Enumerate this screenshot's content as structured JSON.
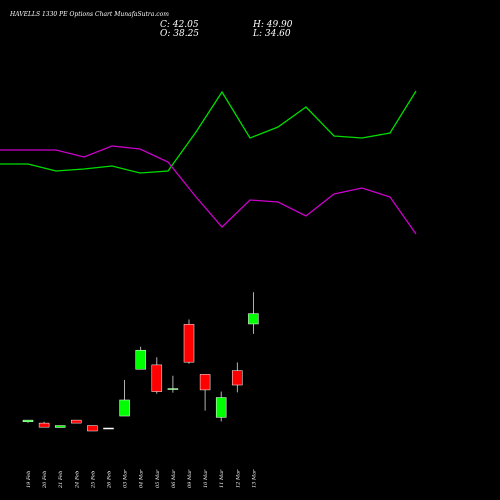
{
  "header": {
    "title": "HAVELLS 1330 PE Options Chart MunafaSutra.com",
    "close_label": "C: 42.05",
    "open_label": "O: 38.25",
    "high_label": "H: 49.90",
    "low_label": "L: 34.60"
  },
  "colors": {
    "background": "#000000",
    "up": "#00ff00",
    "down": "#ff0000",
    "line_green": "#00dd00",
    "line_magenta": "#cc00cc",
    "text": "#ffffff"
  },
  "chart_data": {
    "type": "candlestick",
    "title": "HAVELLS 1330 PE Options Chart MunafaSutra.com",
    "categories": [
      "19 Feb",
      "20 Feb",
      "21 Feb",
      "24 Feb",
      "25 Feb",
      "26 Feb",
      "03 Mar",
      "04 Mar",
      "05 Mar",
      "06 Mar",
      "09 Mar",
      "10 Mar",
      "11 Mar",
      "12 Mar",
      "13 Mar"
    ],
    "candles": [
      {
        "open": 2.3,
        "high": 2.9,
        "low": 1.9,
        "close": 2.9,
        "dir": "up"
      },
      {
        "open": 1.8,
        "high": 2.3,
        "low": 0.3,
        "close": 0.3,
        "dir": "down"
      },
      {
        "open": 0.2,
        "high": 0.9,
        "low": 0.1,
        "close": 0.9,
        "dir": "up"
      },
      {
        "open": 2.9,
        "high": 2.9,
        "low": 1.8,
        "close": 1.8,
        "dir": "down"
      },
      {
        "open": 0.9,
        "high": 0.9,
        "low": -1.1,
        "close": -1.1,
        "dir": "down"
      },
      {
        "open": 0.0,
        "high": 0.0,
        "low": 0.0,
        "close": 0.0,
        "dir": "flat"
      },
      {
        "open": 4.4,
        "high": 17.7,
        "low": 4.4,
        "close": 10.3,
        "dir": "up"
      },
      {
        "open": 21.6,
        "high": 29.9,
        "low": 21.6,
        "close": 28.6,
        "dir": "up"
      },
      {
        "open": 23.2,
        "high": 26.0,
        "low": 12.6,
        "close": 13.4,
        "dir": "down"
      },
      {
        "open": 14.5,
        "high": 19.2,
        "low": 13.0,
        "close": 14.5,
        "dir": "up"
      },
      {
        "open": 38.1,
        "high": 39.9,
        "low": 23.6,
        "close": 24.2,
        "dir": "down"
      },
      {
        "open": 19.7,
        "high": 19.7,
        "low": 6.4,
        "close": 14.0,
        "dir": "down"
      },
      {
        "open": 3.9,
        "high": 13.4,
        "low": 2.4,
        "close": 11.2,
        "dir": "up"
      },
      {
        "open": 21.1,
        "high": 24.1,
        "low": 13.1,
        "close": 15.8,
        "dir": "down"
      },
      {
        "open": 38.25,
        "high": 49.9,
        "low": 34.6,
        "close": 42.05,
        "dir": "up"
      }
    ],
    "overlay_lines": [
      {
        "color": "green",
        "values": [
          164,
          164,
          171,
          169,
          166,
          173,
          171,
          132,
          92,
          138,
          127,
          107,
          136,
          138,
          133,
          91
        ]
      },
      {
        "color": "magenta",
        "values": [
          150,
          150,
          150,
          157,
          146,
          149,
          162,
          197,
          227,
          200,
          202,
          216,
          194,
          188,
          197,
          234
        ]
      }
    ]
  }
}
